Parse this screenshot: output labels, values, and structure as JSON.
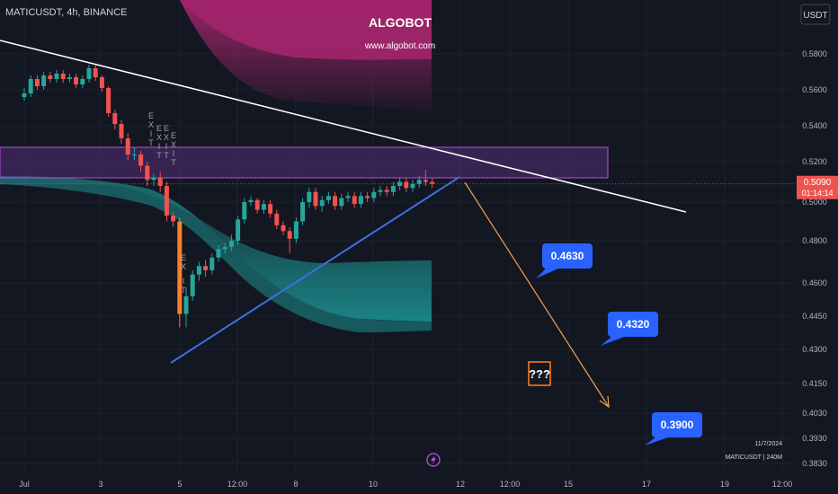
{
  "header": {
    "symbol_info": "MATICUSDT, 4h, BINANCE",
    "brand_title": "ALGOBOT",
    "brand_url": "www.algobot.com",
    "currency_button": "USDT"
  },
  "price_scale": {
    "ticks": [
      "0.5800",
      "0.5600",
      "0.5400",
      "0.5200",
      "0.5000",
      "0.4800",
      "0.4600",
      "0.4450",
      "0.4300",
      "0.4150",
      "0.4030",
      "0.3930",
      "0.3830"
    ],
    "current_price": "0.5090",
    "countdown": "01:14:14"
  },
  "time_axis": {
    "ticks": [
      "Jul",
      "3",
      "5",
      "12:00",
      "8",
      "10",
      "12",
      "12:00",
      "15",
      "17",
      "19",
      "12:00"
    ]
  },
  "targets": [
    "0.4630",
    "0.4320",
    "0.3900"
  ],
  "question_box": "???",
  "signals": [
    "E",
    "X",
    "I",
    "T",
    "E",
    "X",
    "I",
    "T",
    "E",
    "X",
    "I",
    "T",
    "E",
    "X",
    "I",
    "T",
    "E",
    "X",
    "I",
    "T"
  ],
  "footer": {
    "date": "11/7/2024",
    "symbol_tf": "MATICUSDT | 240M"
  },
  "colors": {
    "background": "#131722",
    "up": "#26a69a",
    "down": "#ef5350",
    "orange_candle": "#ff7f27",
    "upper_band": "#a2256b",
    "lower_band": "#1b8f8e",
    "resistance_zone": "#7b3aa8",
    "resistance_line": "#ffffff",
    "support_line": "#3d6fe3",
    "projection": "#f5a04a",
    "target_label": "#2962ff",
    "current_price_bg": "#ef5350"
  },
  "chart_data": {
    "type": "candlestick",
    "title": "",
    "xlabel": "",
    "ylabel": "",
    "ylim": [
      0.381,
      0.595
    ],
    "x": [
      "Jun 30 20:00",
      "Jul 1 00:00",
      "Jul 1 04:00",
      "Jul 1 08:00",
      "Jul 1 12:00",
      "Jul 1 16:00",
      "Jul 1 20:00",
      "Jul 2 00:00",
      "Jul 2 04:00",
      "Jul 2 08:00",
      "Jul 2 12:00",
      "Jul 2 16:00",
      "Jul 2 20:00",
      "Jul 3 00:00",
      "Jul 3 04:00",
      "Jul 3 08:00",
      "Jul 3 12:00",
      "Jul 3 16:00",
      "Jul 3 20:00",
      "Jul 4 00:00",
      "Jul 4 04:00",
      "Jul 4 08:00",
      "Jul 4 12:00",
      "Jul 4 16:00",
      "Jul 4 20:00",
      "Jul 5 00:00",
      "Jul 5 04:00",
      "Jul 5 08:00",
      "Jul 5 12:00",
      "Jul 5 16:00",
      "Jul 5 20:00",
      "Jul 6 00:00",
      "Jul 6 04:00",
      "Jul 6 08:00",
      "Jul 6 12:00",
      "Jul 6 16:00",
      "Jul 6 20:00",
      "Jul 7 00:00",
      "Jul 7 04:00",
      "Jul 7 08:00",
      "Jul 7 12:00",
      "Jul 7 16:00",
      "Jul 7 20:00",
      "Jul 8 00:00",
      "Jul 8 04:00",
      "Jul 8 08:00",
      "Jul 8 12:00",
      "Jul 8 16:00",
      "Jul 8 20:00",
      "Jul 9 00:00",
      "Jul 9 04:00",
      "Jul 9 08:00",
      "Jul 9 12:00",
      "Jul 9 16:00",
      "Jul 9 20:00",
      "Jul 10 00:00",
      "Jul 10 04:00",
      "Jul 10 08:00",
      "Jul 10 12:00",
      "Jul 10 16:00",
      "Jul 10 20:00",
      "Jul 11 00:00",
      "Jul 11 04:00",
      "Jul 11 08:00",
      "Jul 11 12:00"
    ],
    "open": [
      0.552,
      0.556,
      0.558,
      0.566,
      0.562,
      0.568,
      0.566,
      0.569,
      0.566,
      0.567,
      0.563,
      0.566,
      0.572,
      0.567,
      0.561,
      0.547,
      0.541,
      0.533,
      0.524,
      0.524,
      0.518,
      0.511,
      0.512,
      0.508,
      0.493,
      0.49,
      0.446,
      0.454,
      0.464,
      0.468,
      0.466,
      0.472,
      0.476,
      0.477,
      0.48,
      0.491,
      0.5,
      0.501,
      0.496,
      0.499,
      0.494,
      0.488,
      0.485,
      0.481,
      0.49,
      0.5,
      0.505,
      0.498,
      0.501,
      0.503,
      0.498,
      0.502,
      0.503,
      0.499,
      0.503,
      0.502,
      0.505,
      0.506,
      0.505,
      0.508,
      0.51,
      0.507,
      0.509,
      0.511,
      0.51
    ],
    "close": [
      0.556,
      0.558,
      0.566,
      0.562,
      0.568,
      0.566,
      0.569,
      0.566,
      0.567,
      0.563,
      0.566,
      0.572,
      0.567,
      0.561,
      0.547,
      0.541,
      0.533,
      0.524,
      0.524,
      0.518,
      0.511,
      0.512,
      0.508,
      0.493,
      0.49,
      0.446,
      0.454,
      0.464,
      0.468,
      0.466,
      0.472,
      0.476,
      0.477,
      0.48,
      0.491,
      0.5,
      0.501,
      0.496,
      0.499,
      0.494,
      0.488,
      0.485,
      0.481,
      0.49,
      0.5,
      0.505,
      0.498,
      0.501,
      0.503,
      0.498,
      0.502,
      0.503,
      0.499,
      0.503,
      0.502,
      0.505,
      0.506,
      0.505,
      0.508,
      0.51,
      0.507,
      0.509,
      0.511,
      0.51,
      0.509
    ],
    "high": [
      0.559,
      0.561,
      0.568,
      0.568,
      0.57,
      0.57,
      0.571,
      0.571,
      0.569,
      0.569,
      0.568,
      0.574,
      0.574,
      0.568,
      0.562,
      0.549,
      0.543,
      0.536,
      0.528,
      0.526,
      0.52,
      0.514,
      0.515,
      0.51,
      0.495,
      0.492,
      0.458,
      0.466,
      0.47,
      0.471,
      0.474,
      0.478,
      0.479,
      0.483,
      0.493,
      0.502,
      0.503,
      0.502,
      0.501,
      0.501,
      0.496,
      0.49,
      0.487,
      0.492,
      0.502,
      0.507,
      0.507,
      0.503,
      0.505,
      0.505,
      0.504,
      0.505,
      0.505,
      0.505,
      0.505,
      0.507,
      0.508,
      0.508,
      0.51,
      0.512,
      0.512,
      0.511,
      0.513,
      0.516,
      0.512
    ],
    "low": [
      0.55,
      0.554,
      0.556,
      0.56,
      0.56,
      0.564,
      0.564,
      0.564,
      0.564,
      0.561,
      0.561,
      0.564,
      0.565,
      0.559,
      0.545,
      0.538,
      0.53,
      0.521,
      0.521,
      0.515,
      0.508,
      0.508,
      0.505,
      0.49,
      0.487,
      0.44,
      0.44,
      0.452,
      0.461,
      0.463,
      0.464,
      0.47,
      0.474,
      0.475,
      0.478,
      0.489,
      0.498,
      0.494,
      0.494,
      0.492,
      0.486,
      0.483,
      0.474,
      0.479,
      0.488,
      0.497,
      0.496,
      0.495,
      0.499,
      0.496,
      0.496,
      0.5,
      0.497,
      0.497,
      0.5,
      0.5,
      0.503,
      0.503,
      0.503,
      0.506,
      0.505,
      0.505,
      0.507,
      0.508,
      0.507
    ],
    "resistance_zone": [
      0.512,
      0.528
    ],
    "resistance_line": {
      "from": {
        "x": "Jun 30 20:00",
        "y": 0.592
      },
      "to": {
        "x": "Jul 19 00:00",
        "y": 0.498
      }
    },
    "support_line": {
      "from": {
        "x": "Jul 5 00:00",
        "y": 0.4315
      },
      "to": {
        "x": "Jul 12 00:00",
        "y": 0.515
      }
    },
    "projection": {
      "from": {
        "x": "Jul 12 12:00",
        "y": 0.514
      },
      "to": {
        "x": "Jul 16 12:00",
        "y": 0.404
      }
    },
    "targets": [
      0.463,
      0.432,
      0.39
    ],
    "current_price": 0.509
  }
}
